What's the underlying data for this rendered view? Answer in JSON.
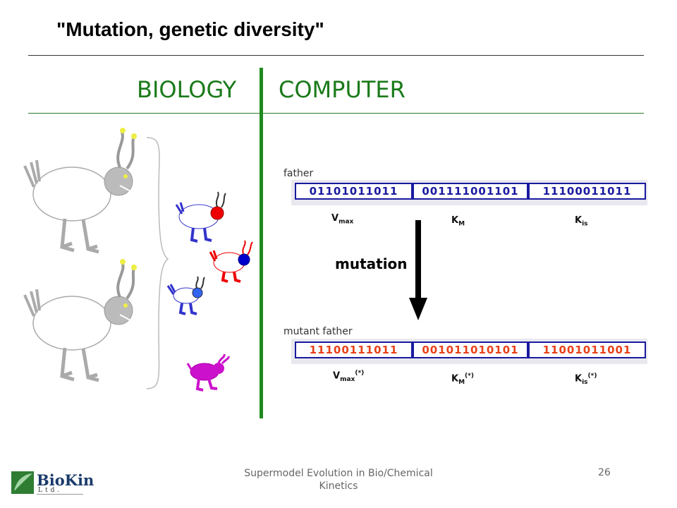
{
  "title": "\"Mutation, genetic diversity\"",
  "headings": {
    "biology": "BIOLOGY",
    "computer": "COMPUTER"
  },
  "father": {
    "label": "father",
    "genes": [
      "01101011011",
      "001111001101",
      "11100011011"
    ],
    "params": [
      {
        "base": "V",
        "sub": "max",
        "sup": ""
      },
      {
        "base": "K",
        "sub": "M",
        "sup": ""
      },
      {
        "base": "K",
        "sub": "is",
        "sup": ""
      }
    ]
  },
  "mutation_label": "mutation",
  "mutant": {
    "label": "mutant father",
    "genes": [
      "11100111011",
      "001011010101",
      "11001011001"
    ],
    "params": [
      {
        "base": "V",
        "sub": "max",
        "sup": "(*)"
      },
      {
        "base": "K",
        "sub": "M",
        "sup": "(*)"
      },
      {
        "base": "K",
        "sub": "is",
        "sup": "(*)"
      }
    ]
  },
  "footer": {
    "line1": "Supermodel Evolution in Bio/Chemical",
    "line2": "Kinetics",
    "page": "26"
  },
  "logo": {
    "name": "BioKin",
    "sub": "Ltd."
  },
  "colors": {
    "heading_green": "#1a7a1a",
    "gene_border": "#1a1aa0",
    "father_bits": "#1a1aa0",
    "mutant_bits": "#e8401a"
  }
}
